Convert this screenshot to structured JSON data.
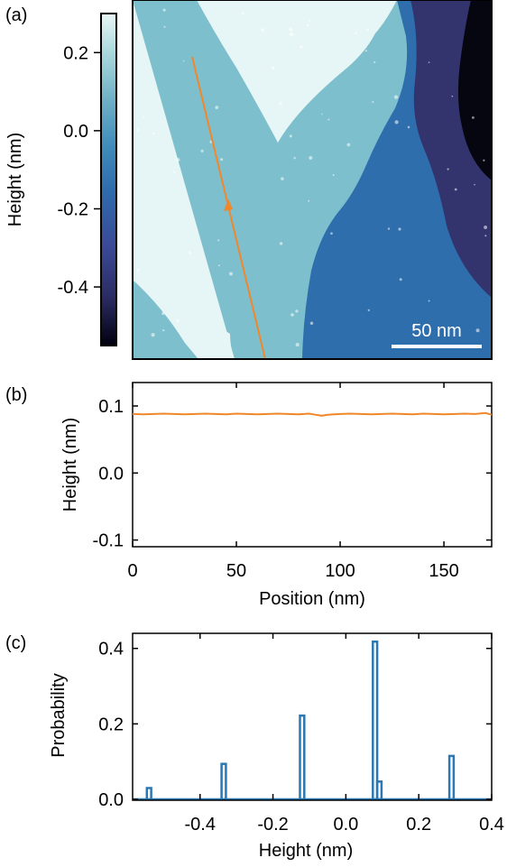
{
  "chart_data": [
    {
      "panel": "(a)",
      "type": "heatmap",
      "colorbar": {
        "label": "Height (nm)",
        "range": [
          -0.55,
          0.3
        ],
        "ticks": [
          0.2,
          0.0,
          -0.2,
          -0.4
        ],
        "tick_labels": [
          "0.2",
          "0.0",
          "-0.2",
          "-0.4"
        ],
        "colors": [
          "#000010",
          "#2a2a60",
          "#3a4a98",
          "#2e6aac",
          "#3f8cbb",
          "#6fb0c6",
          "#a9d8dc",
          "#e8f6f6"
        ]
      },
      "terraces": [
        {
          "height_nm": 0.29,
          "color": "#e6f5f5"
        },
        {
          "height_nm": 0.08,
          "color": "#7dbfcd"
        },
        {
          "height_nm": -0.12,
          "color": "#2f6ead"
        },
        {
          "height_nm": -0.33,
          "color": "#33346e"
        },
        {
          "height_nm": -0.54,
          "color": "#05060f"
        }
      ],
      "scale_bar": {
        "label": "50 nm",
        "length_nm": 50
      },
      "line_profile": {
        "color": "#f0882a",
        "start_nm": [
          13,
          190
        ],
        "end_nm": [
          37,
          0
        ]
      }
    },
    {
      "panel": "(b)",
      "type": "line",
      "xlabel": "Position (nm)",
      "ylabel": "Height (nm)",
      "xlim": [
        0,
        173
      ],
      "ylim": [
        -0.11,
        0.135
      ],
      "xticks": [
        0,
        50,
        100,
        150
      ],
      "xtick_labels": [
        "0",
        "50",
        "100",
        "150"
      ],
      "yticks": [
        0.1,
        0.0,
        -0.1
      ],
      "ytick_labels": [
        "0.1",
        "0.0",
        "-0.1"
      ],
      "grid": false,
      "series": [
        {
          "color": "#f0882a",
          "x": [
            0,
            5,
            10,
            15,
            20,
            25,
            30,
            35,
            40,
            45,
            50,
            55,
            60,
            65,
            70,
            75,
            80,
            85,
            88,
            91,
            94,
            97,
            100,
            105,
            110,
            115,
            120,
            125,
            130,
            135,
            140,
            145,
            150,
            155,
            160,
            165,
            170,
            173
          ],
          "y": [
            0.088,
            0.0875,
            0.088,
            0.0885,
            0.088,
            0.0875,
            0.088,
            0.0885,
            0.088,
            0.0875,
            0.0885,
            0.088,
            0.0875,
            0.088,
            0.0885,
            0.088,
            0.0875,
            0.0885,
            0.087,
            0.0855,
            0.087,
            0.0875,
            0.088,
            0.0885,
            0.088,
            0.0875,
            0.088,
            0.0885,
            0.088,
            0.0875,
            0.0885,
            0.088,
            0.0875,
            0.088,
            0.0885,
            0.088,
            0.0895,
            0.087
          ]
        }
      ]
    },
    {
      "panel": "(c)",
      "type": "bar",
      "xlabel": "Height (nm)",
      "ylabel": "Probability",
      "xlim": [
        -0.585,
        0.4
      ],
      "ylim": [
        0,
        0.44
      ],
      "xticks": [
        -0.4,
        -0.2,
        0.0,
        0.2,
        0.4
      ],
      "xtick_labels": [
        "-0.4",
        "-0.2",
        "0.0",
        "0.2",
        "0.4"
      ],
      "yticks": [
        0.0,
        0.2,
        0.4
      ],
      "ytick_labels": [
        "0.0",
        "0.2",
        "0.4"
      ],
      "grid": false,
      "bin_width": 0.012,
      "series": [
        {
          "color": "#2a78b4",
          "bin_centers": [
            -0.54,
            -0.335,
            -0.12,
            0.08,
            0.092,
            0.29
          ],
          "values": [
            0.03,
            0.094,
            0.222,
            0.418,
            0.047,
            0.115
          ]
        }
      ]
    }
  ]
}
